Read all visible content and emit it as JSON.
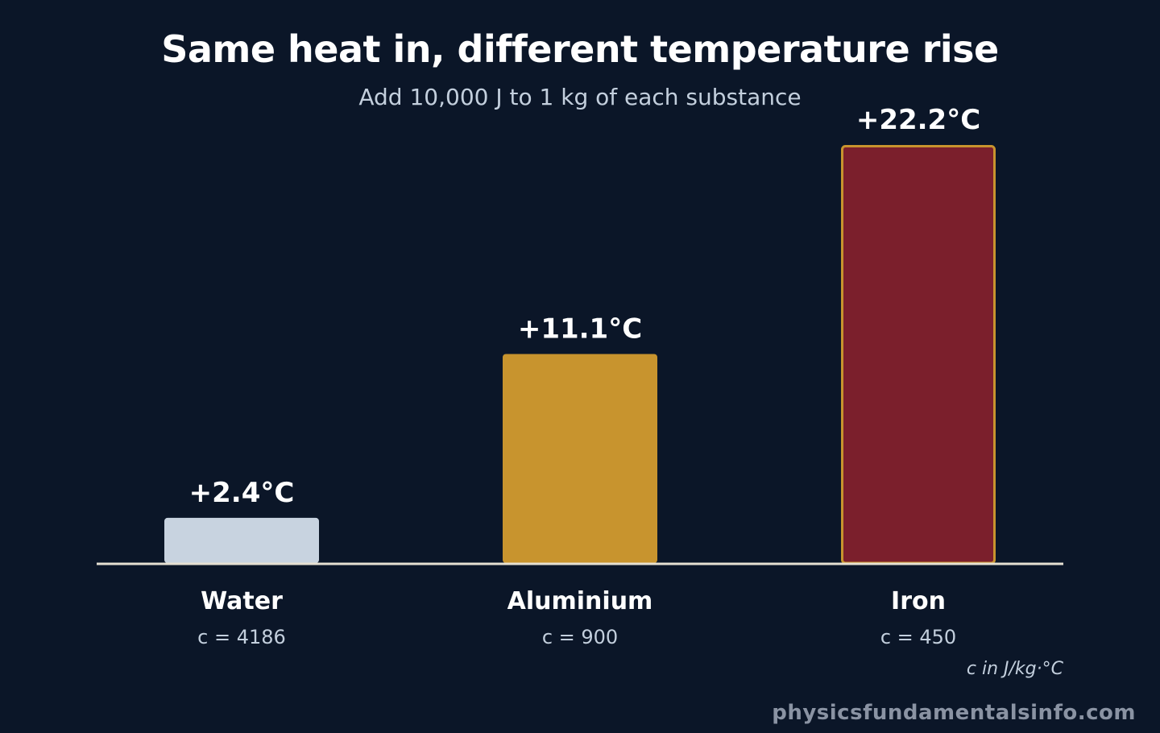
{
  "chart_data": {
    "type": "bar",
    "title": "Same heat in, different temperature rise",
    "subtitle": "Add 10,000 J to 1 kg of each substance",
    "categories": [
      "Water",
      "Aluminium",
      "Iron"
    ],
    "values": [
      2.4,
      11.1,
      22.2
    ],
    "value_labels": [
      "+2.4°C",
      "+11.1°C",
      "+22.2°C"
    ],
    "sublabels": [
      "c = 4186",
      "c = 900",
      "c = 450"
    ],
    "colors": [
      "#c8d3e0",
      "#c8942e",
      "#7b1f2c"
    ],
    "highlight_border": [
      "",
      "",
      "#c8942e"
    ],
    "ylim": [
      0,
      22.2
    ],
    "footnote": "c in J/kg·°C",
    "xlabel": "",
    "ylabel": ""
  },
  "watermark": "physicsfundamentalsinfo.com"
}
